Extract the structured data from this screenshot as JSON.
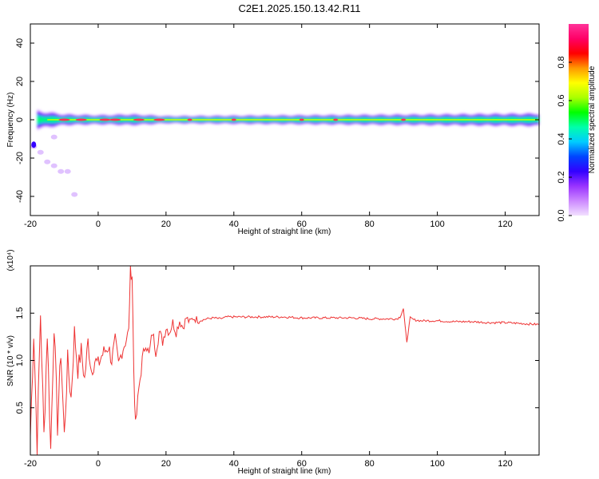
{
  "title": "C2E1.2025.150.13.42.R11",
  "chart_data": [
    {
      "type": "heatmap",
      "xlabel": "Height of straight line (km)",
      "ylabel": "Frequency (Hz)",
      "xlim": [
        -20,
        130
      ],
      "ylim": [
        -50,
        50
      ],
      "xticks": [
        -20,
        0,
        20,
        40,
        60,
        80,
        100,
        120
      ],
      "yticks": [
        -40,
        -20,
        0,
        20,
        40
      ],
      "colorbar": {
        "label": "Normalized spectral amplitude",
        "range": [
          0,
          1
        ],
        "ticks": [
          "0.0",
          "0.2",
          "0.4",
          "0.6",
          "0.8"
        ],
        "colors": [
          "#f2e0ff",
          "#cc88ff",
          "#9933ff",
          "#3300ff",
          "#0044ff",
          "#00ccff",
          "#00ffaa",
          "#00ff00",
          "#aaff00",
          "#ffff00",
          "#ff9900",
          "#ff0000",
          "#ff0066",
          "#ff3399"
        ]
      },
      "band": {
        "center_freq": 0,
        "halfwidth_hz_by_height": [
          [
            -18,
            5
          ],
          [
            -10,
            3
          ],
          [
            0,
            2.5
          ],
          [
            10,
            3
          ],
          [
            20,
            2
          ],
          [
            60,
            2.5
          ],
          [
            100,
            3
          ],
          [
            130,
            3.5
          ]
        ],
        "scatter_low_freq": [
          [
            -19,
            -14
          ],
          [
            -17,
            -17
          ],
          [
            -15,
            -22
          ],
          [
            -13,
            -24
          ],
          [
            -11,
            -27
          ],
          [
            -9,
            -27
          ],
          [
            -13,
            -9
          ],
          [
            -7,
            -39
          ]
        ]
      }
    },
    {
      "type": "line",
      "xlabel": "Height of straight line (km)",
      "ylabel": "SNR (10 * v/v)",
      "y_multiplier": "(x10⁴)",
      "xlim": [
        -20,
        130
      ],
      "ylim": [
        0,
        2.0
      ],
      "xticks": [
        -20,
        0,
        20,
        40,
        60,
        80,
        100,
        120
      ],
      "yticks": [
        "0.5",
        "1.0",
        "1.5"
      ],
      "ytick_values": [
        0.5,
        1.0,
        1.5
      ],
      "series": [
        {
          "color": "#ee3333",
          "x": [
            -20,
            -19,
            -18,
            -17,
            -16,
            -15,
            -14,
            -13,
            -12,
            -11,
            -10,
            -9,
            -8,
            -7,
            -6,
            -5,
            -4,
            -3,
            -2,
            -1,
            0,
            1,
            2,
            3,
            4,
            5,
            6,
            7,
            8,
            9,
            9.5,
            10,
            10.5,
            11,
            12,
            13,
            14,
            15,
            16,
            17,
            18,
            19,
            20,
            21,
            22,
            23,
            24,
            25,
            26,
            27,
            28,
            30,
            32,
            34,
            36,
            38,
            40,
            45,
            50,
            55,
            60,
            65,
            70,
            75,
            80,
            85,
            88,
            89,
            90,
            90.5,
            91,
            92,
            93,
            95,
            100,
            105,
            110,
            115,
            120,
            125,
            130
          ],
          "y": [
            0.2,
            1.3,
            0.1,
            1.5,
            0.2,
            1.3,
            0.05,
            1.4,
            0.3,
            1.1,
            0.2,
            1.0,
            0.6,
            1.3,
            0.9,
            1.1,
            0.8,
            1.2,
            0.9,
            1.0,
            0.95,
            1.05,
            1.1,
            1.15,
            1.0,
            1.2,
            0.95,
            1.1,
            1.2,
            1.3,
            1.98,
            1.9,
            0.9,
            0.3,
            0.7,
            1.0,
            1.2,
            1.05,
            1.3,
            1.1,
            1.3,
            1.2,
            1.35,
            1.3,
            1.4,
            1.3,
            1.42,
            1.35,
            1.45,
            1.4,
            1.45,
            1.42,
            1.44,
            1.45,
            1.44,
            1.46,
            1.46,
            1.46,
            1.46,
            1.46,
            1.45,
            1.45,
            1.45,
            1.45,
            1.44,
            1.44,
            1.44,
            1.46,
            1.55,
            1.35,
            1.2,
            1.45,
            1.43,
            1.42,
            1.42,
            1.41,
            1.41,
            1.4,
            1.4,
            1.39,
            1.38
          ]
        }
      ]
    }
  ]
}
